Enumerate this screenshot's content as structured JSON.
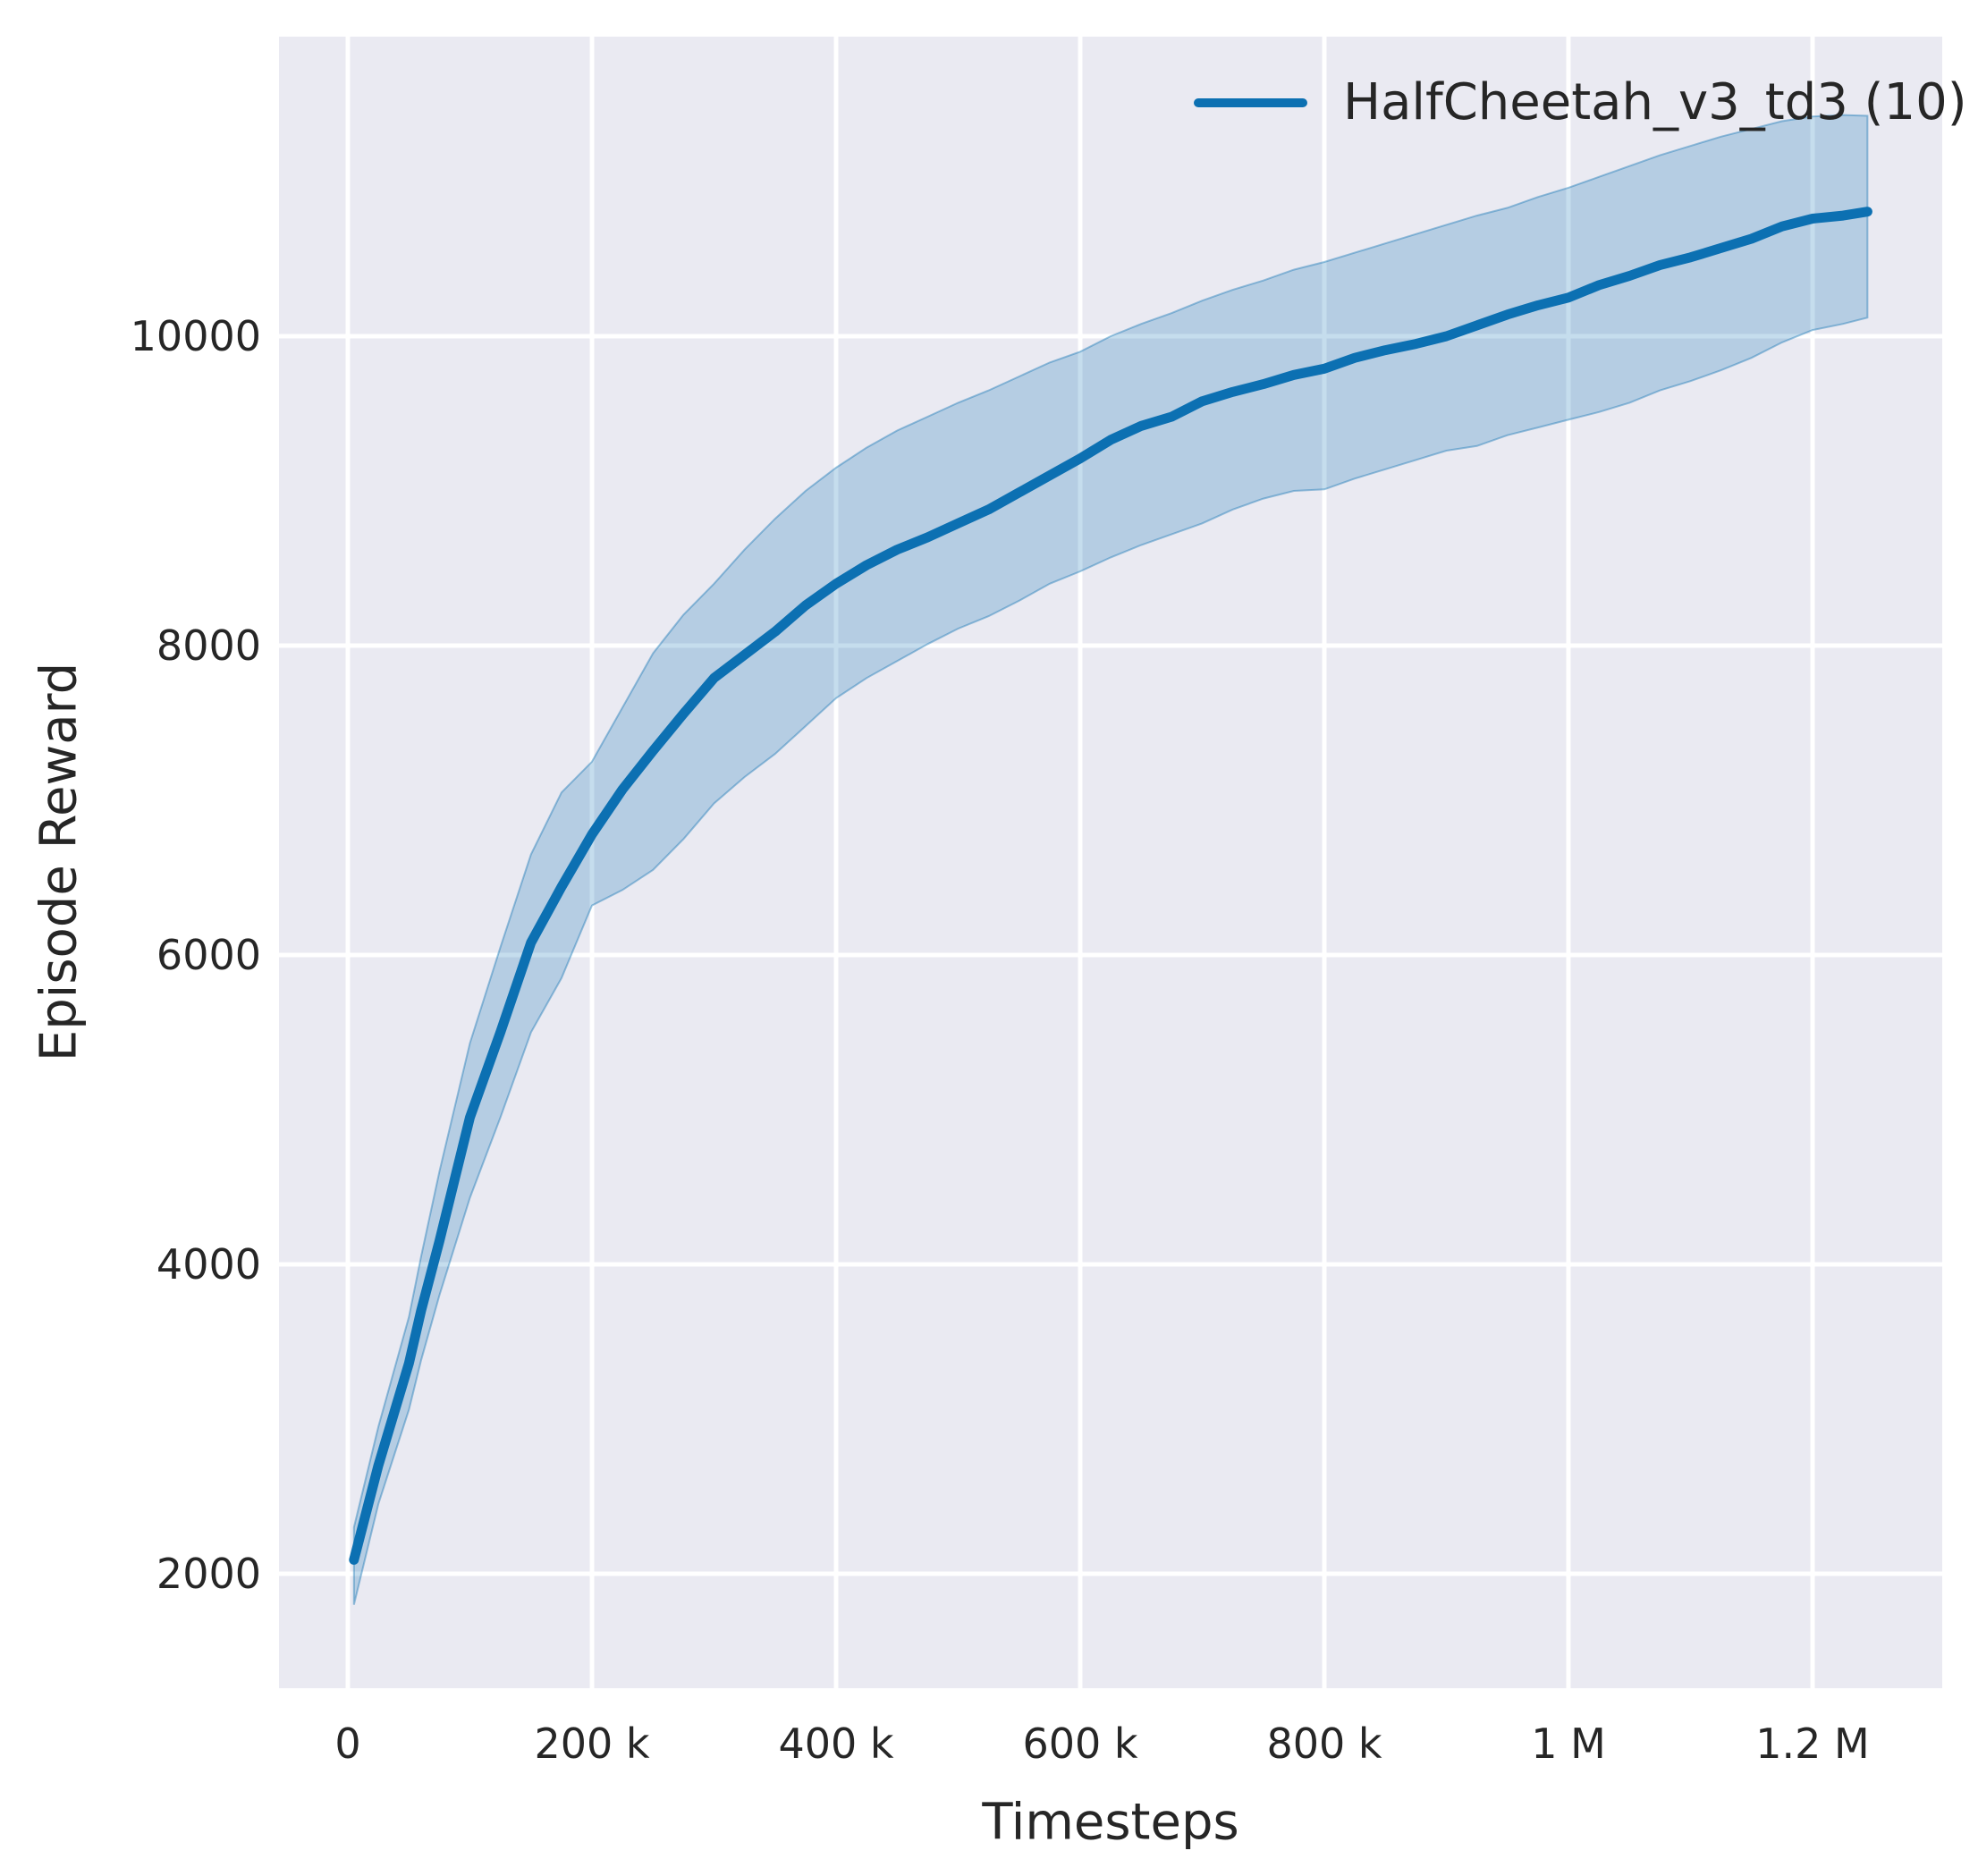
{
  "chart_data": {
    "type": "line",
    "title": "",
    "xlabel": "Timesteps",
    "ylabel": "Episode Reward",
    "grid": true,
    "plot_background": "#eaeaf2",
    "gridline_color": "#ffffff",
    "text_color": "#262626",
    "legend_position": "upper right",
    "xlim": [
      -56000,
      1306000
    ],
    "ylim": [
      1260,
      11940
    ],
    "x_ticks": {
      "values": [
        0,
        200000,
        400000,
        600000,
        800000,
        1000000,
        1200000
      ],
      "labels": [
        "0",
        "200 k",
        "400 k",
        "600 k",
        "800 k",
        "1 M",
        "1.2 M"
      ]
    },
    "y_ticks": {
      "values": [
        2000,
        4000,
        6000,
        8000,
        10000
      ],
      "labels": [
        "2000",
        "4000",
        "6000",
        "8000",
        "10000"
      ]
    },
    "series": [
      {
        "name": "HalfCheetah_v3_td3 (10)",
        "color": "#0c70b2",
        "band_fill_opacity": 0.24,
        "x": [
          5000,
          25000,
          50000,
          60000,
          75000,
          100000,
          125000,
          150000,
          175000,
          200000,
          225000,
          250000,
          275000,
          300000,
          325000,
          350000,
          375000,
          400000,
          425000,
          450000,
          475000,
          500000,
          525000,
          550000,
          575000,
          600000,
          625000,
          650000,
          675000,
          700000,
          725000,
          750000,
          775000,
          800000,
          825000,
          850000,
          875000,
          900000,
          925000,
          950000,
          975000,
          1000000,
          1025000,
          1050000,
          1075000,
          1100000,
          1125000,
          1150000,
          1175000,
          1200000,
          1225000,
          1245000
        ],
        "mean": [
          2090,
          2700,
          3360,
          3700,
          4150,
          4950,
          5500,
          6080,
          6440,
          6780,
          7070,
          7320,
          7560,
          7790,
          7940,
          8090,
          8260,
          8400,
          8520,
          8620,
          8700,
          8790,
          8880,
          8990,
          9100,
          9210,
          9330,
          9420,
          9480,
          9580,
          9640,
          9690,
          9750,
          9790,
          9860,
          9910,
          9950,
          10000,
          10070,
          10140,
          10200,
          10250,
          10330,
          10390,
          10460,
          10510,
          10570,
          10630,
          10710,
          10760,
          10780,
          10805
        ],
        "lower": [
          1800,
          2450,
          3060,
          3380,
          3800,
          4430,
          4950,
          5500,
          5850,
          6320,
          6420,
          6550,
          6750,
          6980,
          7150,
          7300,
          7480,
          7660,
          7790,
          7900,
          8010,
          8110,
          8190,
          8290,
          8400,
          8480,
          8570,
          8650,
          8720,
          8790,
          8880,
          8950,
          9000,
          9010,
          9080,
          9140,
          9200,
          9260,
          9290,
          9360,
          9410,
          9460,
          9510,
          9570,
          9650,
          9710,
          9780,
          9860,
          9960,
          10040,
          10080,
          10120
        ],
        "upper": [
          2300,
          2950,
          3660,
          4050,
          4600,
          5430,
          6050,
          6650,
          7050,
          7250,
          7600,
          7950,
          8200,
          8400,
          8620,
          8820,
          9000,
          9150,
          9280,
          9390,
          9480,
          9570,
          9650,
          9740,
          9830,
          9900,
          10000,
          10080,
          10150,
          10230,
          10300,
          10360,
          10430,
          10480,
          10540,
          10600,
          10660,
          10720,
          10780,
          10830,
          10900,
          10960,
          11030,
          11100,
          11170,
          11230,
          11290,
          11340,
          11390,
          11420,
          11430,
          11425
        ]
      }
    ]
  },
  "legend": {
    "items": [
      {
        "label": "HalfCheetah_v3_td3 (10)",
        "color": "#0c70b2"
      }
    ]
  },
  "axes": {
    "xlabel": "Timesteps",
    "ylabel": "Episode Reward"
  }
}
